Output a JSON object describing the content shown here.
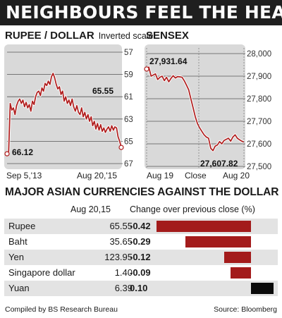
{
  "title": "NEIGHBOURS FEEL THE HEAT",
  "chart_data": [
    {
      "type": "line",
      "title": "RUPEE / DOLLAR",
      "subtitle": "Inverted scale",
      "y_inverted": true,
      "ylim": [
        57,
        67
      ],
      "yticks": [
        "57",
        "59",
        "61",
        "63",
        "65",
        "67"
      ],
      "x_start_label": "Sep 5,'13",
      "x_end_label": "Aug 20,'15",
      "annotations": [
        "65.55",
        "66.12"
      ],
      "series": [
        {
          "values": [
            66.12,
            65.9,
            61.6,
            62.2,
            62.0,
            62.6,
            61.8,
            61.4,
            61.2,
            61.6,
            61.3,
            61.9,
            61.5,
            62.0,
            61.7,
            62.3,
            61.4,
            61.7,
            61.0,
            60.6,
            60.5,
            60.9,
            60.2,
            60.5,
            59.8,
            60.0,
            59.6,
            59.9,
            59.2,
            58.9,
            59.3,
            59.9,
            60.3,
            60.1,
            60.8,
            60.5,
            61.4,
            61.0,
            61.6,
            61.3,
            61.8,
            61.2,
            61.9,
            62.3,
            61.8,
            62.4,
            62.6,
            62.0,
            62.8,
            62.4,
            63.0,
            62.6,
            63.2,
            62.8,
            63.6,
            63.2,
            63.9,
            63.4,
            64.0,
            63.5,
            64.1,
            63.8,
            64.2,
            63.9,
            63.7,
            64.1,
            63.6,
            64.0,
            63.7,
            63.8,
            64.6,
            65.0,
            65.55
          ]
        }
      ]
    },
    {
      "type": "line",
      "title": "SENSEX",
      "ylim": [
        27500,
        28000
      ],
      "yticks": [
        "28,000",
        "27,900",
        "27,800",
        "27,700",
        "27,600",
        "27,500"
      ],
      "x_labels": [
        "Aug 19",
        "Close",
        "Aug 20"
      ],
      "annotations": [
        "27,931.64",
        "27,607.82"
      ],
      "series": [
        {
          "values": [
            27931.64,
            27940,
            27900,
            27905,
            27910,
            27885,
            27895,
            27900,
            27880,
            27895,
            27875,
            27890,
            27902,
            27892,
            27898,
            27897,
            27895,
            27880,
            27860,
            27840,
            27800,
            27760,
            27720,
            27690,
            27670,
            27655,
            27640,
            27630,
            27625,
            27580,
            27570,
            27590,
            27595,
            27610,
            27600,
            27615,
            27620,
            27625,
            27612,
            27630,
            27640,
            27625,
            27618,
            27612,
            27607.82
          ]
        }
      ]
    }
  ],
  "currencies": {
    "heading": "MAJOR ASIAN CURRENCIES AGAINST THE DOLLAR",
    "col_rate": "Aug 20,15",
    "col_change": "Change over previous close (%)",
    "rows": [
      {
        "name": "Rupee",
        "rate": "65.55",
        "change": "-0.42",
        "value": -0.42
      },
      {
        "name": "Baht",
        "rate": "35.65",
        "change": "-0.29",
        "value": -0.29
      },
      {
        "name": "Yen",
        "rate": "123.95",
        "change": "-0.12",
        "value": -0.12
      },
      {
        "name": "Singapore dollar",
        "rate": "1.40",
        "change": "-0.09",
        "value": -0.09
      },
      {
        "name": "Yuan",
        "rate": "6.39",
        "change": "0.10",
        "value": 0.1
      }
    ]
  },
  "colors": {
    "negative": "#a31b1b",
    "positive": "#0a0a0a",
    "line": "#b01c1c"
  },
  "footer": {
    "left": "Compiled by BS Research Bureau",
    "right": "Source: Bloomberg"
  }
}
